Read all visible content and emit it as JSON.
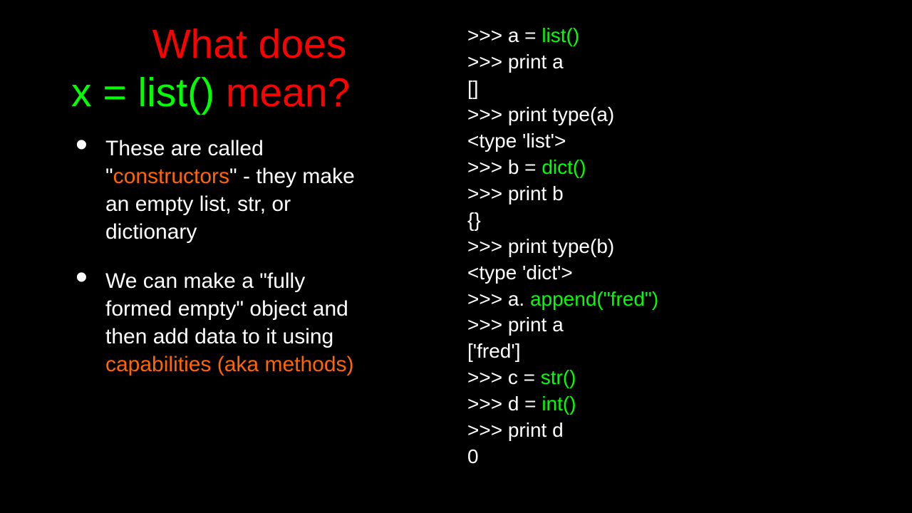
{
  "colors": {
    "background": "#000000",
    "white": "#ffffff",
    "red": "#ff0000",
    "green": "#00ff00",
    "orange": "#ff6600"
  },
  "typography": {
    "title_fontsize": 57,
    "bullet_fontsize": 30,
    "code_fontsize": 28,
    "font_family": "Arial"
  },
  "title": {
    "line1_red": "What does",
    "line2_green_pre": "x = list()",
    "line2_red_post": " mean?"
  },
  "bullets": [
    {
      "pre": "These are called \"",
      "hl": "constructors",
      "post": "\"  - they make an empty list, str, or dictionary"
    },
    {
      "pre": "We can make a \"fully formed empty\" object and then add data to it using ",
      "hl": "capabilities (aka methods)",
      "post": ""
    }
  ],
  "code": {
    "l1a": ">>> a = ",
    "l1b": "list()",
    "l2": ">>> print a",
    "l3": "[]",
    "l4": ">>> print type(a)",
    "l5": "<type 'list'>",
    "l6a": ">>> b = ",
    "l6b": "dict()",
    "l7": ">>> print b",
    "l8": "{}",
    "l9": ">>> print type(b)",
    "l10": "<type 'dict'>",
    "l11a": ">>> a. ",
    "l11b": "append(\"fred\")",
    "l12": ">>> print a",
    "l13": "['fred']",
    "l14a": ">>> c = ",
    "l14b": "str()",
    "l15a": ">>> d = ",
    "l15b": "int()",
    "l16": ">>> print d",
    "l17": "0"
  }
}
